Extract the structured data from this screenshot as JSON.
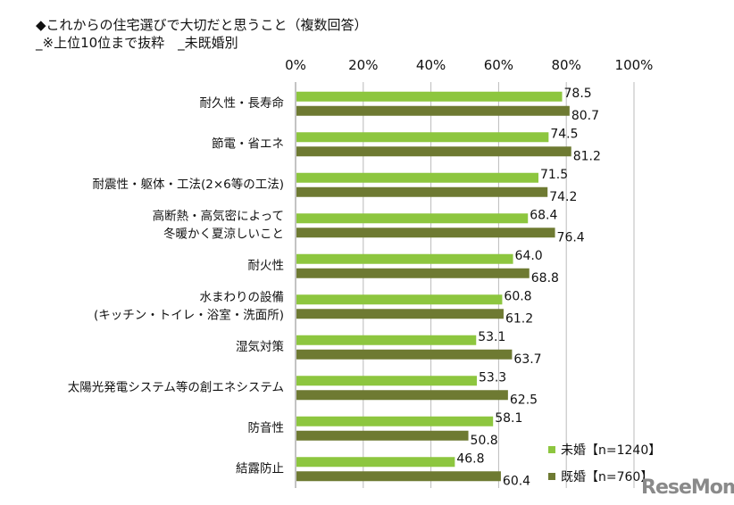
{
  "title_line1": "◆これからの住宅選びで大切だと思うこと（複数回答）",
  "title_line2": "_※上位10位まで抜粋　_未既婚別",
  "logo": "ReseMom",
  "colors": {
    "unmarried": "#8dc63f",
    "married": "#6e7a32"
  },
  "chart_data": {
    "type": "bar",
    "orientation": "horizontal",
    "xlim": [
      0,
      100
    ],
    "x_ticks": [
      "0%",
      "20%",
      "40%",
      "60%",
      "80%",
      "100%"
    ],
    "grid": true,
    "legend_position": "bottom-right",
    "categories": [
      [
        "耐久性・長寿命"
      ],
      [
        "節電・省エネ"
      ],
      [
        "耐震性・躯体・工法(2×6等の工法)"
      ],
      [
        "高断熱・高気密によって",
        "冬暖かく夏涼しいこと"
      ],
      [
        "耐火性"
      ],
      [
        "水まわりの設備",
        "(キッチン・トイレ・浴室・洗面所)"
      ],
      [
        "湿気対策"
      ],
      [
        "太陽光発電システム等の創エネシステム"
      ],
      [
        "防音性"
      ],
      [
        "結露防止"
      ]
    ],
    "series": [
      {
        "name": "未婚【n=1240】",
        "values": [
          78.5,
          74.5,
          71.5,
          68.4,
          64.0,
          60.8,
          53.1,
          53.3,
          58.1,
          46.8
        ]
      },
      {
        "name": "既婚【n=760】",
        "values": [
          80.7,
          81.2,
          74.2,
          76.4,
          68.8,
          61.2,
          63.7,
          62.5,
          50.8,
          60.4
        ]
      }
    ]
  }
}
